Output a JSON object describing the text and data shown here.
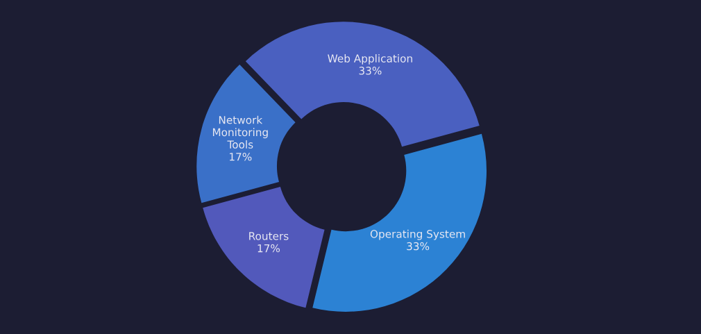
{
  "chart_data": {
    "type": "donut",
    "categories": [
      "Web Application",
      "Operating System",
      "Routers",
      "Network Monitoring Tools"
    ],
    "values": [
      33,
      33,
      17,
      17
    ],
    "value_labels": [
      "33%",
      "33%",
      "17%",
      "17%"
    ],
    "colors": [
      "#4a60c0",
      "#2c82d4",
      "#5259bb",
      "#3a70c8"
    ],
    "legend": false
  }
}
